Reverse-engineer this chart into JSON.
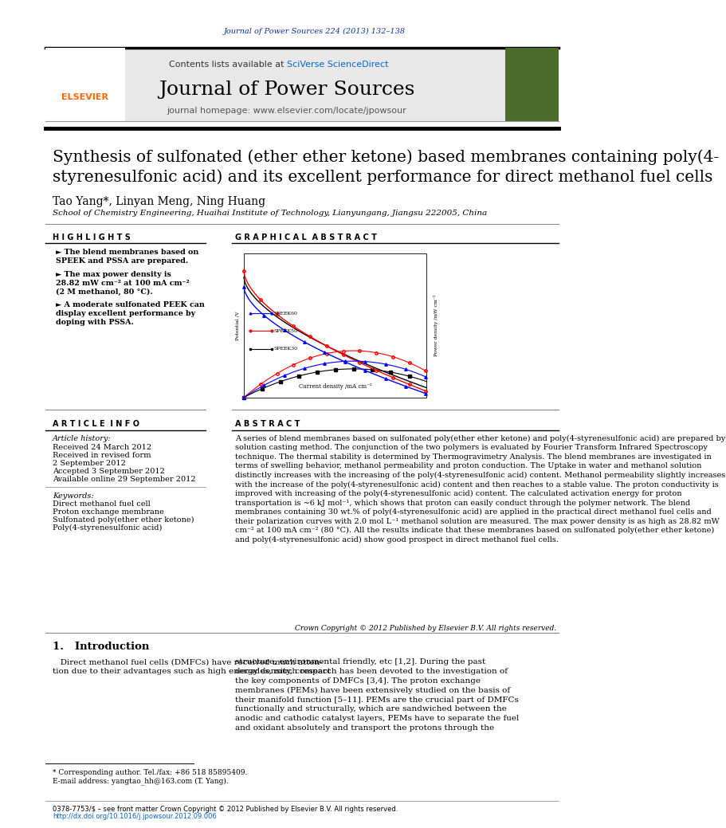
{
  "page_width": 9.92,
  "page_height": 13.23,
  "background_color": "#ffffff",
  "top_journal_ref": "Journal of Power Sources 224 (2013) 132–138",
  "top_journal_ref_color": "#003399",
  "header_bg": "#e8e8e8",
  "header_contents": "Contents lists available at ",
  "header_sciverse": "SciVerse ScienceDirect",
  "header_sciverse_color": "#0066cc",
  "header_journal": "Journal of Power Sources",
  "header_homepage": "journal homepage: www.elsevier.com/locate/jpowsour",
  "article_title": "Synthesis of sulfonated (ether ether ketone) based membranes containing poly(4-\nstyrenesulfonic acid) and its excellent performance for direct methanol fuel cells",
  "authors": "Tao Yang*, Linyan Meng, Ning Huang",
  "affiliation": "School of Chemistry Engineering, Huaihai Institute of Technology, Lianyungang, Jiangsu 222005, China",
  "highlights_title": "H I G H L I G H T S",
  "highlights": [
    "The blend membranes based on\nSPEEK and PSSA are prepared.",
    "The max power density is\n28.82 mW cm⁻² at 100 mA cm⁻²\n(2 M methanol, 80 °C).",
    "A moderate sulfonated PEEK can\ndisplay excellent performance by\ndoping with PSSA."
  ],
  "graphical_abstract_title": "G R A P H I C A L  A B S T R A C T",
  "article_info_title": "A R T I C L E  I N F O",
  "article_history_label": "Article history:",
  "received": "Received 24 March 2012",
  "revised": "Received in revised form",
  "revised2": "2 September 2012",
  "accepted": "Accepted 3 September 2012",
  "available": "Available online 29 September 2012",
  "keywords_label": "Keywords:",
  "keywords": [
    "Direct methanol fuel cell",
    "Proton exchange membrane",
    "Sulfonated poly(ether ether ketone)",
    "Poly(4-styrenesulfonic acid)"
  ],
  "abstract_title": "A B S T R A C T",
  "abstract_text": "A series of blend membranes based on sulfonated poly(ether ether ketone) and poly(4-styrenesulfonic acid) are prepared by solution casting method. The conjunction of the two polymers is evaluated by Fourier Transform Infrared Spectroscopy technique. The thermal stability is determined by Thermogravimetry Analysis. The blend membranes are investigated in terms of swelling behavior, methanol permeability and proton conduction. The Uptake in water and methanol solution distinctly increases with the increasing of the poly(4-styrenesulfonic acid) content. Methanol permeability slightly increases with the increase of the poly(4-styrenesulfonic acid) content and then reaches to a stable value. The proton conductivity is improved with increasing of the poly(4-styrenesulfonic acid) content. The calculated activation energy for proton transportation is ~6 kJ mol⁻¹, which shows that proton can easily conduct through the polymer network. The blend membranes containing 30 wt.% of poly(4-styrenesulfonic acid) are applied in the practical direct methanol fuel cells and their polarization curves with 2.0 mol L⁻¹ methanol solution are measured. The max power density is as high as 28.82 mW cm⁻² at 100 mA cm⁻² (80 °C). All the results indicate that these membranes based on sulfonated poly(ether ether ketone) and poly(4-styrenesulfonic acid) show good prospect in direct methanol fuel cells.",
  "crown_copyright": "Crown Copyright © 2012 Published by Elsevier B.V. All rights reserved.",
  "intro_title": "1.   Introduction",
  "intro_text_left": "   Direct methanol fuel cells (DMFCs) have received much atten-\ntion due to their advantages such as high energy density, compact",
  "intro_text_right": "structure, environmental friendly, etc [1,2]. During the past\ndecades, much research has been devoted to the investigation of\nthe key components of DMFCs [3,4]. The proton exchange\nmembranes (PEMs) have been extensively studied on the basis of\ntheir manifold function [5–11]. PEMs are the crucial part of DMFCs\nfunctionally and structurally, which are sandwiched between the\nanodic and cathodic catalyst layers, PEMs have to separate the fuel\nand oxidant absolutely and transport the protons through the",
  "footnote1": "* Corresponding author. Tel./fax: +86 518 85895409.",
  "footnote2": "E-mail address: yangtao_hh@163.com (T. Yang).",
  "footer_issn": "0378-7753/$ – see front matter Crown Copyright © 2012 Published by Elsevier B.V. All rights reserved.",
  "footer_doi": "http://dx.doi.org/10.1016/j.jpowsour.2012.09.006"
}
